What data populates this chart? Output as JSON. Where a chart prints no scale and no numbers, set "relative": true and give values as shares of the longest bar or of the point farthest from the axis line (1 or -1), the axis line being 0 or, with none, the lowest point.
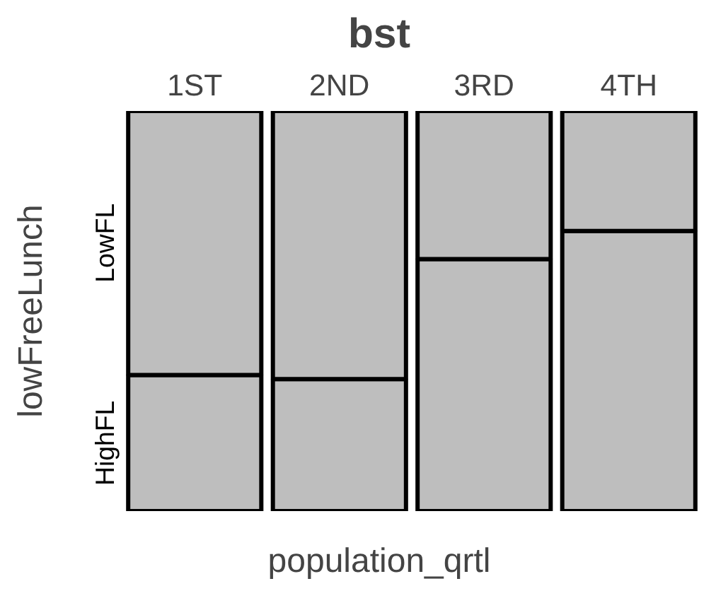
{
  "chart_data": {
    "type": "bar",
    "stacked": true,
    "relative": true,
    "title": "bst",
    "xlabel": "population_qrtl",
    "ylabel": "lowFreeLunch",
    "categories": [
      "1ST",
      "2ND",
      "3RD",
      "4TH"
    ],
    "series": [
      {
        "name": "HighFL",
        "color": "#bebebe",
        "values": [
          0.34,
          0.33,
          0.63,
          0.7
        ]
      },
      {
        "name": "LowFL",
        "color": "#bebebe",
        "values": [
          0.66,
          0.67,
          0.37,
          0.3
        ]
      }
    ]
  }
}
